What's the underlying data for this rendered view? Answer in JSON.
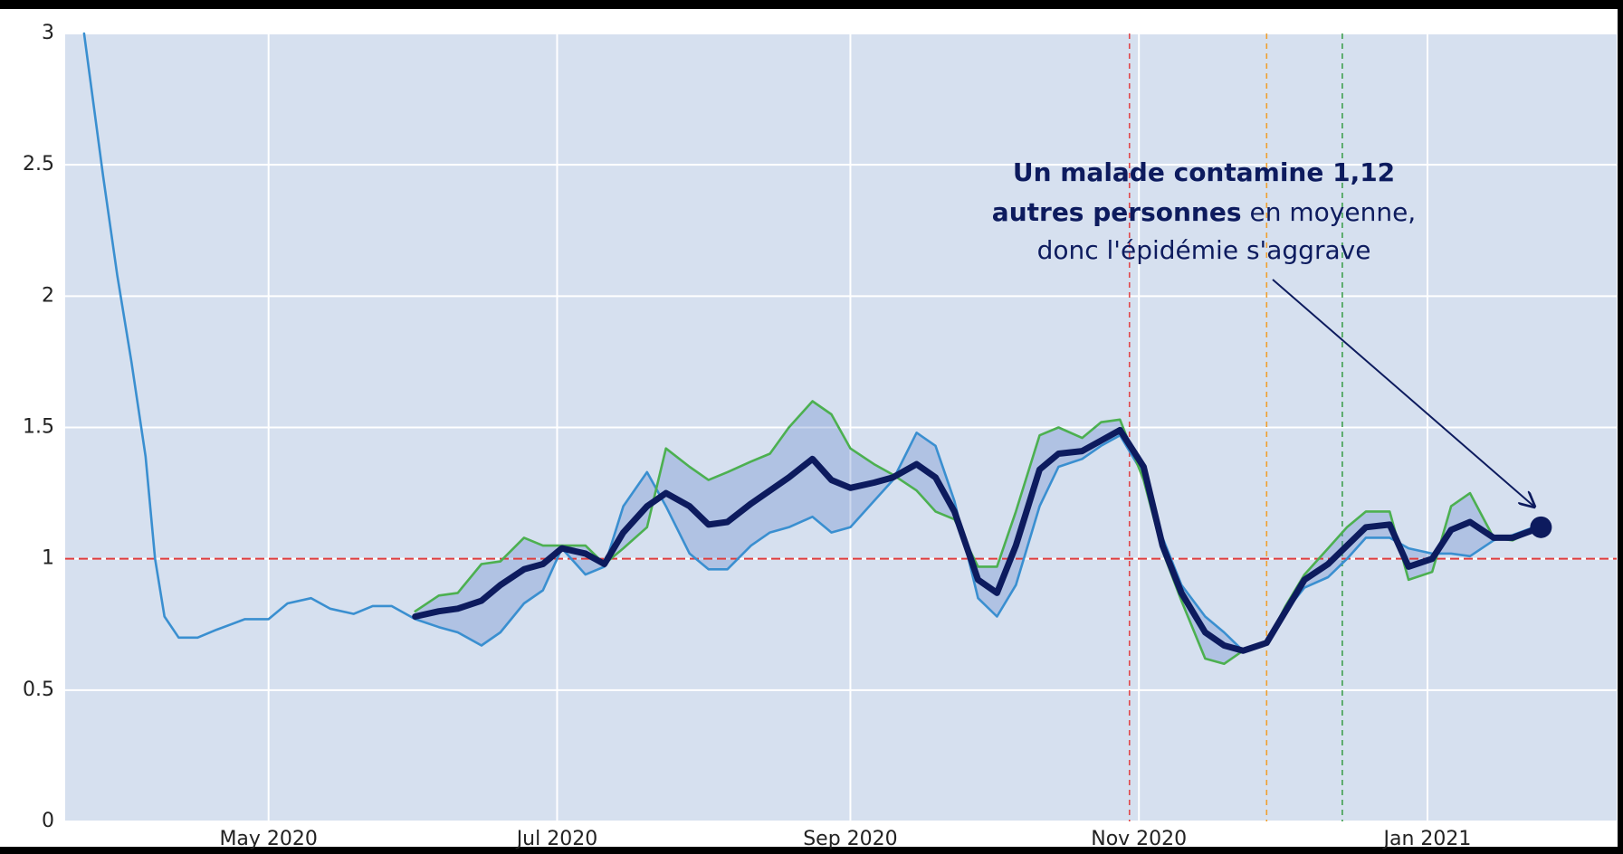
{
  "chart_data": {
    "type": "line",
    "x": [
      "2020-03-23",
      "2020-03-27",
      "2020-03-30",
      "2020-04-02",
      "2020-04-05",
      "2020-04-07",
      "2020-04-09",
      "2020-04-12",
      "2020-04-16",
      "2020-04-20",
      "2020-04-26",
      "2020-05-01",
      "2020-05-05",
      "2020-05-10",
      "2020-05-14",
      "2020-05-19",
      "2020-05-23",
      "2020-05-27",
      "2020-06-01",
      "2020-06-06",
      "2020-06-10",
      "2020-06-15",
      "2020-06-19",
      "2020-06-24",
      "2020-06-28",
      "2020-07-02",
      "2020-07-07",
      "2020-07-11",
      "2020-07-15",
      "2020-07-20",
      "2020-07-24",
      "2020-07-29",
      "2020-08-02",
      "2020-08-06",
      "2020-08-11",
      "2020-08-15",
      "2020-08-19",
      "2020-08-24",
      "2020-08-28",
      "2020-09-01",
      "2020-09-06",
      "2020-09-10",
      "2020-09-15",
      "2020-09-19",
      "2020-09-23",
      "2020-09-28",
      "2020-10-02",
      "2020-10-06",
      "2020-10-11",
      "2020-10-15",
      "2020-10-20",
      "2020-10-24",
      "2020-10-28",
      "2020-11-02",
      "2020-11-06",
      "2020-11-10",
      "2020-11-15",
      "2020-11-19",
      "2020-11-23",
      "2020-11-28",
      "2020-12-02",
      "2020-12-06",
      "2020-12-11",
      "2020-12-15",
      "2020-12-19",
      "2020-12-24",
      "2020-12-28",
      "2021-01-02",
      "2021-01-06",
      "2021-01-10",
      "2021-01-15",
      "2021-01-19",
      "2021-01-25"
    ],
    "series": [
      {
        "color": "#3a8fd0",
        "values": [
          3.0,
          2.46,
          2.08,
          1.75,
          1.39,
          1.0,
          0.78,
          0.7,
          0.7,
          0.73,
          0.77,
          0.77,
          0.83,
          0.85,
          0.81,
          0.79,
          0.82,
          0.82,
          0.77,
          0.74,
          0.72,
          0.67,
          0.72,
          0.83,
          0.88,
          1.04,
          0.94,
          0.97,
          1.2,
          1.33,
          1.2,
          1.02,
          0.96,
          0.96,
          1.05,
          1.1,
          1.12,
          1.16,
          1.1,
          1.12,
          1.22,
          1.3,
          1.48,
          1.43,
          1.22,
          0.85,
          0.78,
          0.9,
          1.2,
          1.35,
          1.38,
          1.43,
          1.47,
          1.32,
          1.08,
          0.9,
          0.78,
          0.72,
          0.65,
          0.68,
          0.8,
          0.89,
          0.93,
          1.0,
          1.08,
          1.08,
          1.04,
          1.02,
          1.02,
          1.01,
          1.07,
          1.09,
          1.13
        ]
      },
      {
        "color": "#4cb050",
        "values": [
          null,
          null,
          null,
          null,
          null,
          null,
          null,
          null,
          null,
          null,
          null,
          null,
          null,
          null,
          null,
          null,
          null,
          null,
          0.8,
          0.86,
          0.87,
          0.98,
          0.99,
          1.08,
          1.05,
          1.05,
          1.05,
          0.98,
          1.04,
          1.12,
          1.42,
          1.35,
          1.3,
          1.33,
          1.37,
          1.4,
          1.5,
          1.6,
          1.55,
          1.42,
          1.36,
          1.32,
          1.26,
          1.18,
          1.15,
          0.97,
          0.97,
          1.18,
          1.47,
          1.5,
          1.46,
          1.52,
          1.53,
          1.3,
          1.03,
          0.84,
          0.62,
          0.6,
          0.65,
          0.68,
          0.82,
          0.94,
          1.04,
          1.12,
          1.18,
          1.18,
          0.92,
          0.95,
          1.2,
          1.25,
          1.08,
          1.07,
          1.12
        ]
      },
      {
        "color": "#0d1b5e",
        "values": [
          null,
          null,
          null,
          null,
          null,
          null,
          null,
          null,
          null,
          null,
          null,
          null,
          null,
          null,
          null,
          null,
          null,
          null,
          0.78,
          0.8,
          0.81,
          0.84,
          0.9,
          0.96,
          0.98,
          1.04,
          1.02,
          0.98,
          1.1,
          1.2,
          1.25,
          1.2,
          1.13,
          1.14,
          1.21,
          1.26,
          1.31,
          1.38,
          1.3,
          1.27,
          1.29,
          1.31,
          1.36,
          1.31,
          1.18,
          0.92,
          0.87,
          1.05,
          1.34,
          1.4,
          1.41,
          1.45,
          1.49,
          1.35,
          1.05,
          0.87,
          0.72,
          0.67,
          0.65,
          0.68,
          0.8,
          0.92,
          0.98,
          1.05,
          1.12,
          1.13,
          0.97,
          1.0,
          1.11,
          1.14,
          1.08,
          1.08,
          1.12
        ]
      }
    ],
    "xlim": [
      "2020-03-19",
      "2021-02-10"
    ],
    "xticks": [
      {
        "value": "2020-05-01",
        "label": "May 2020"
      },
      {
        "value": "2020-07-01",
        "label": "Jul 2020"
      },
      {
        "value": "2020-09-01",
        "label": "Sep 2020"
      },
      {
        "value": "2020-11-01",
        "label": "Nov 2020"
      },
      {
        "value": "2021-01-01",
        "label": "Jan 2021"
      }
    ],
    "ylim": [
      0,
      3
    ],
    "yticks": [
      0,
      0.5,
      1,
      1.5,
      2,
      2.5,
      3
    ],
    "grid": true,
    "band_color": "#5a7fc8",
    "hline": {
      "y": 1,
      "color": "#e03c3c"
    },
    "vlines": [
      {
        "x": "2020-10-30",
        "color": "#e0484b"
      },
      {
        "x": "2020-11-28",
        "color": "#f0a030"
      },
      {
        "x": "2020-12-14",
        "color": "#3f9f4f"
      }
    ],
    "annotation": {
      "lines": [
        [
          {
            "text": "Un malade contamine 1,12",
            "bold": true
          }
        ],
        [
          {
            "text": "autres personnes",
            "bold": true
          },
          {
            "text": "en moyenne,",
            "bold": false
          }
        ],
        [
          {
            "text": "donc l'épidémie s'aggrave",
            "bold": false
          }
        ]
      ]
    }
  }
}
